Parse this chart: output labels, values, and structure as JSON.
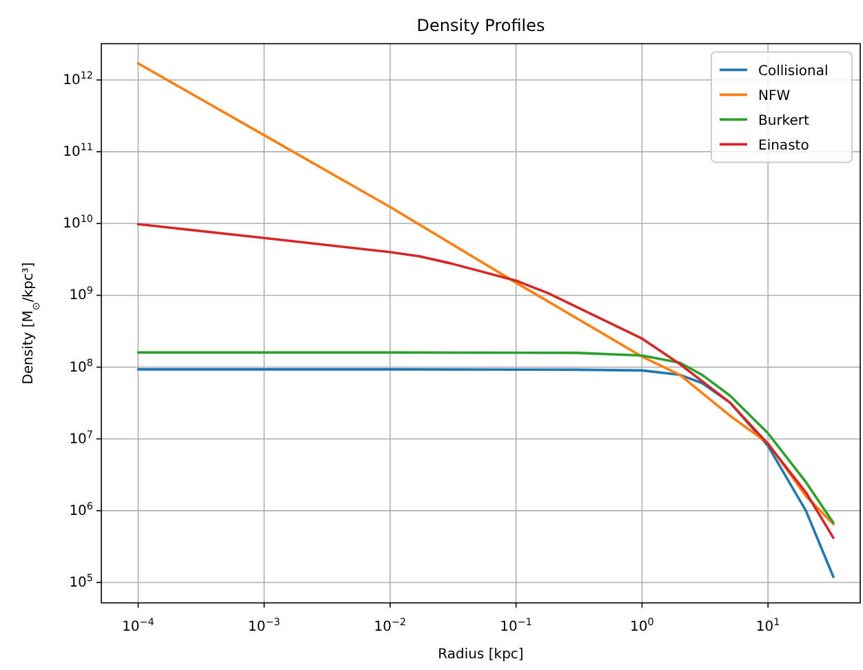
{
  "chart_data": {
    "type": "line",
    "title": "Density Profiles",
    "xlabel": "Radius [kpc]",
    "ylabel": "Density [M$_{⊙}$/kpc³]",
    "log": "xy",
    "grid": true,
    "legend": "top right",
    "line_style": "solid",
    "marker": "none",
    "xlim": [
      5.1e-05,
      54
    ],
    "ylim": [
      52000.0,
      3200000000000.0
    ],
    "xticks": [
      {
        "value": 0.0001,
        "label": "10$^{−4}$"
      },
      {
        "value": 0.001,
        "label": "10$^{−3}$"
      },
      {
        "value": 0.01,
        "label": "10$^{−2}$"
      },
      {
        "value": 0.1,
        "label": "10$^{−1}$"
      },
      {
        "value": 1,
        "label": "10$^{0}$"
      },
      {
        "value": 10,
        "label": "10$^{1}$"
      }
    ],
    "yticks": [
      {
        "value": 100000.0,
        "label": "10$^{5}$"
      },
      {
        "value": 1000000.0,
        "label": "10$^{6}$"
      },
      {
        "value": 10000000.0,
        "label": "10$^{7}$"
      },
      {
        "value": 100000000.0,
        "label": "10$^{8}$"
      },
      {
        "value": 1000000000.0,
        "label": "10$^{9}$"
      },
      {
        "value": 10000000000.0,
        "label": "10$^{10}$"
      },
      {
        "value": 100000000000.0,
        "label": "10$^{11}$"
      },
      {
        "value": 1000000000000.0,
        "label": "10$^{12}$"
      }
    ],
    "series": [
      {
        "name": "Collisional",
        "color": "#1f77b4",
        "x": [
          0.0001,
          0.01,
          0.3,
          1,
          2,
          3,
          5,
          10,
          20,
          33
        ],
        "values": [
          93000000.0,
          93000000.0,
          92000000.0,
          90000000.0,
          78000000.0,
          60000000.0,
          32000000.0,
          8000000.0,
          1000000.0,
          120000.0
        ]
      },
      {
        "name": "NFW",
        "color": "#ff7f0e",
        "x": [
          0.0001,
          0.001,
          0.01,
          0.1,
          1,
          2,
          5,
          10,
          20,
          33
        ],
        "values": [
          1700000000000.0,
          170000000000.0,
          17000000000.0,
          1500000000.0,
          140000000.0,
          78000000.0,
          21000000.0,
          8700000.0,
          1600000.0,
          650000.0
        ]
      },
      {
        "name": "Burkert",
        "color": "#2ca02c",
        "x": [
          0.0001,
          0.01,
          0.3,
          1,
          2,
          3,
          5,
          10,
          20,
          33
        ],
        "values": [
          160000000.0,
          160000000.0,
          158000000.0,
          145000000.0,
          115000000.0,
          78000000.0,
          40000000.0,
          12000000.0,
          2500000.0,
          680000.0
        ]
      },
      {
        "name": "Einasto",
        "color": "#d62728",
        "x": [
          0.0001,
          0.001,
          0.01,
          0.017,
          0.03,
          0.1,
          0.18,
          1,
          2,
          5,
          10,
          20,
          33
        ],
        "values": [
          9800000000.0,
          6300000000.0,
          4000000000.0,
          3500000000.0,
          2800000000.0,
          1600000000.0,
          1070000000.0,
          250000000.0,
          110000000.0,
          32000000.0,
          8500000.0,
          1800000.0,
          420000.0
        ]
      }
    ]
  }
}
